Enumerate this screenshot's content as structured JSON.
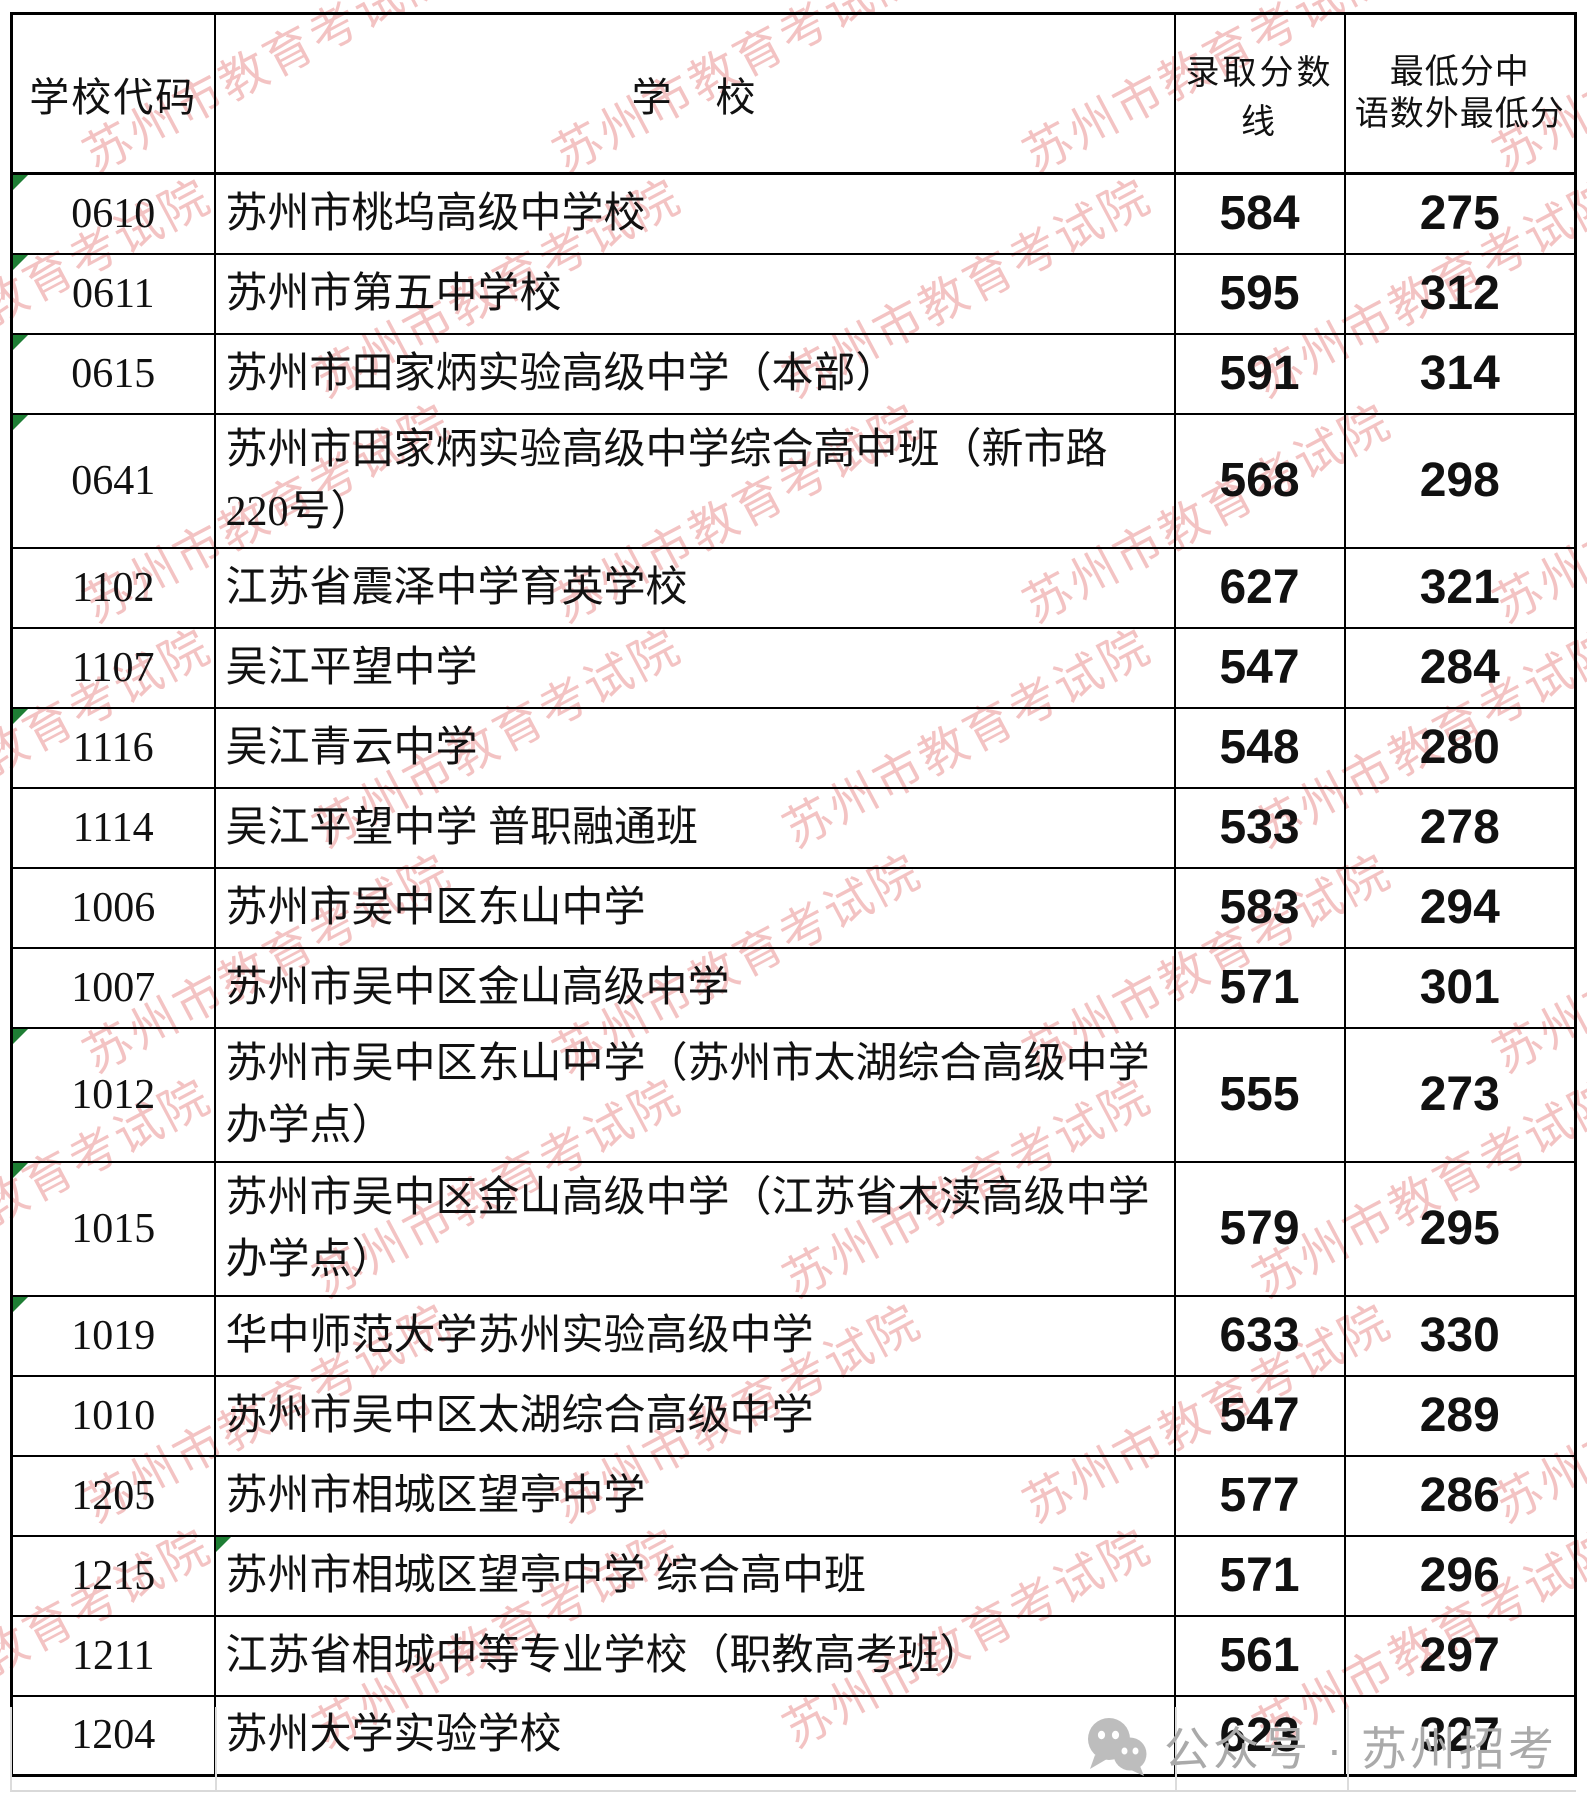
{
  "table": {
    "headers": {
      "code": "学校代码",
      "school": "学　校",
      "score_line": "录取分数线",
      "min_line1": "最低分中",
      "min_line2": "语数外最低分"
    },
    "rows": [
      {
        "code": "0610",
        "school": "苏州市桃坞高级中学校",
        "score": "584",
        "min": "275",
        "code_marker": true,
        "school_marker": false,
        "tall": false
      },
      {
        "code": "0611",
        "school": "苏州市第五中学校",
        "score": "595",
        "min": "312",
        "code_marker": true,
        "school_marker": false,
        "tall": false
      },
      {
        "code": "0615",
        "school": "苏州市田家炳实验高级中学（本部）",
        "score": "591",
        "min": "314",
        "code_marker": true,
        "school_marker": false,
        "tall": false
      },
      {
        "code": "0641",
        "school": "苏州市田家炳实验高级中学综合高中班（新市路220号）",
        "score": "568",
        "min": "298",
        "code_marker": true,
        "school_marker": false,
        "tall": false
      },
      {
        "code": "1102",
        "school": "江苏省震泽中学育英学校",
        "score": "627",
        "min": "321",
        "code_marker": false,
        "school_marker": false,
        "tall": false
      },
      {
        "code": "1107",
        "school": "吴江平望中学",
        "score": "547",
        "min": "284",
        "code_marker": false,
        "school_marker": false,
        "tall": false
      },
      {
        "code": "1116",
        "school": "吴江青云中学",
        "score": "548",
        "min": "280",
        "code_marker": true,
        "school_marker": false,
        "tall": false
      },
      {
        "code": "1114",
        "school": "吴江平望中学 普职融通班",
        "score": "533",
        "min": "278",
        "code_marker": false,
        "school_marker": false,
        "tall": false
      },
      {
        "code": "1006",
        "school": "苏州市吴中区东山中学",
        "score": "583",
        "min": "294",
        "code_marker": false,
        "school_marker": false,
        "tall": false
      },
      {
        "code": "1007",
        "school": "苏州市吴中区金山高级中学",
        "score": "571",
        "min": "301",
        "code_marker": false,
        "school_marker": false,
        "tall": false
      },
      {
        "code": "1012",
        "school": "苏州市吴中区东山中学（苏州市太湖综合高级中学办学点）",
        "score": "555",
        "min": "273",
        "code_marker": true,
        "school_marker": false,
        "tall": true
      },
      {
        "code": "1015",
        "school": "苏州市吴中区金山高级中学（江苏省木渎高级中学办学点）",
        "score": "579",
        "min": "295",
        "code_marker": true,
        "school_marker": false,
        "tall": true
      },
      {
        "code": "1019",
        "school": "华中师范大学苏州实验高级中学",
        "score": "633",
        "min": "330",
        "code_marker": true,
        "school_marker": false,
        "tall": false
      },
      {
        "code": "1010",
        "school": "苏州市吴中区太湖综合高级中学",
        "score": "547",
        "min": "289",
        "code_marker": false,
        "school_marker": false,
        "tall": false
      },
      {
        "code": "1205",
        "school": "苏州市相城区望亭中学",
        "score": "577",
        "min": "286",
        "code_marker": false,
        "school_marker": false,
        "tall": false
      },
      {
        "code": "1215",
        "school": "苏州市相城区望亭中学 综合高中班",
        "score": "571",
        "min": "296",
        "code_marker": false,
        "school_marker": true,
        "tall": false
      },
      {
        "code": "1211",
        "school": "江苏省相城中等专业学校（职教高考班）",
        "score": "561",
        "min": "297",
        "code_marker": false,
        "school_marker": false,
        "tall": false
      },
      {
        "code": "1204",
        "school": "苏州大学实验学校",
        "score": "623",
        "min": "327",
        "code_marker": false,
        "school_marker": false,
        "tall": false
      }
    ]
  },
  "watermark": {
    "text": "苏州市教育考试院",
    "color": "#df6262"
  },
  "marker_color": "#1e7e34",
  "footer": {
    "label": "公众号",
    "separator": "·",
    "account": "苏州招考",
    "icon": "wechat-icon",
    "text_color": "#aaaaaa"
  }
}
